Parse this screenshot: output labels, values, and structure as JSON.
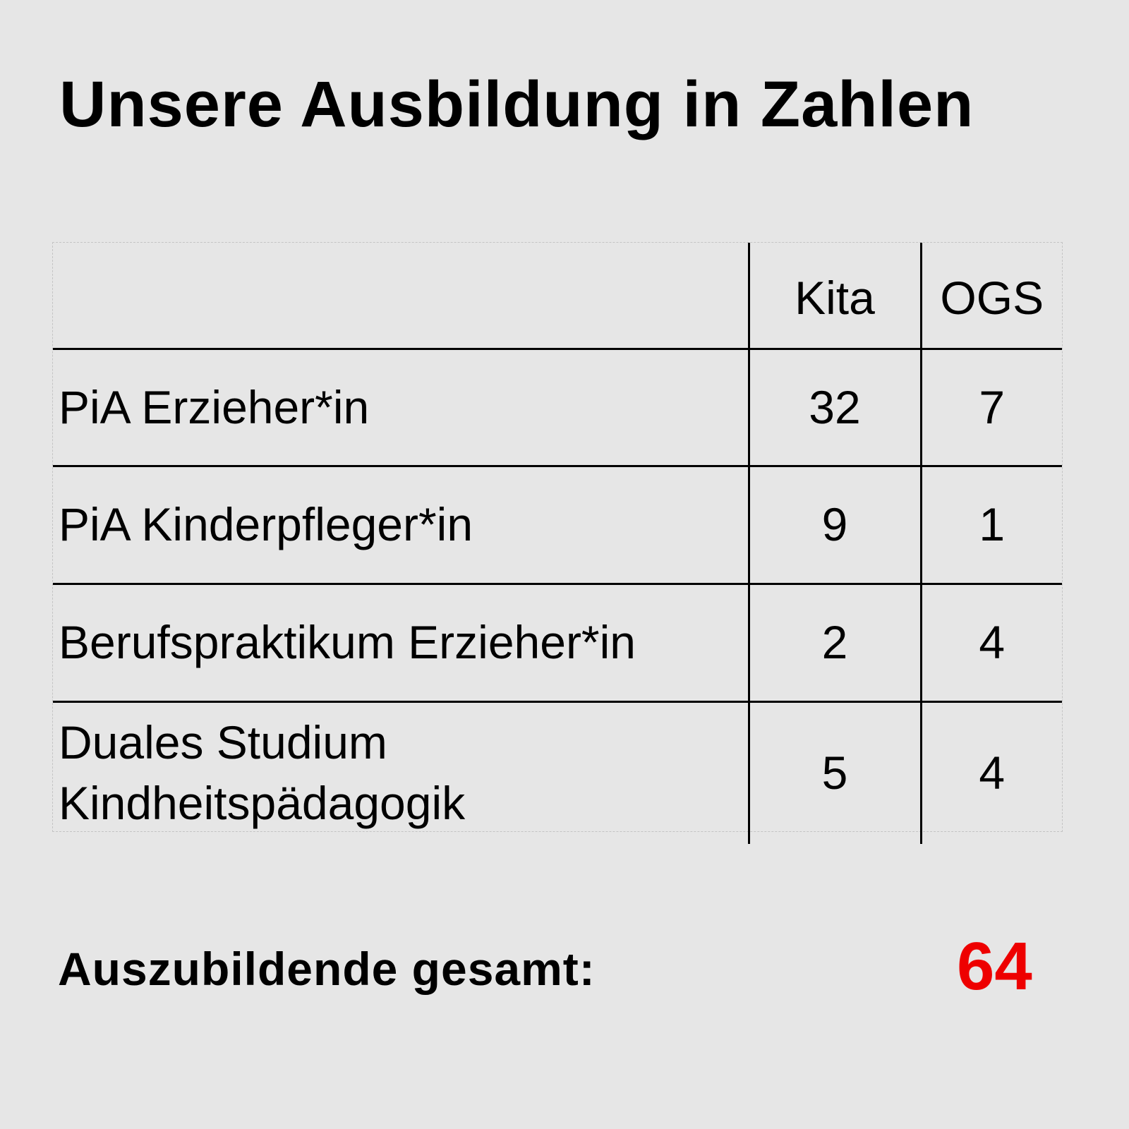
{
  "title": "Unsere Ausbildung in Zahlen",
  "table": {
    "header": {
      "label": "",
      "kita": "Kita",
      "ogs": "OGS"
    },
    "rows": [
      {
        "label": "PiA Erzieher*in",
        "kita": "32",
        "ogs": "7"
      },
      {
        "label": "PiA Kinderpfleger*in",
        "kita": "9",
        "ogs": "1"
      },
      {
        "label": "Berufspraktikum Erzieher*in",
        "kita": "2",
        "ogs": "4"
      },
      {
        "label_line1": "Duales Studium",
        "label_line2": "Kindheitspädagogik",
        "kita": "5",
        "ogs": "4"
      }
    ]
  },
  "total": {
    "label": "Auszubildende gesamt:",
    "value": "64"
  },
  "colors": {
    "background": "#e6e6e6",
    "text": "#000000",
    "total_value": "#ee0000",
    "table_lines": "#000000"
  }
}
